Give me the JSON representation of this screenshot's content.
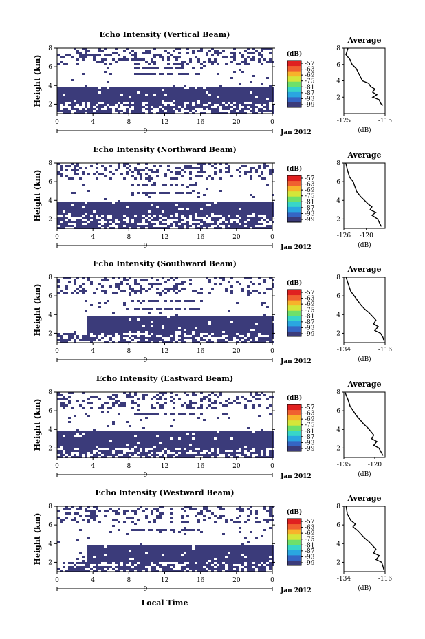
{
  "figure": {
    "x_axis_label": "Local Time",
    "date_label": "Jan 2012",
    "day_label": "9",
    "colorbar_unit": "(dB)",
    "average_title": "Average",
    "average_xlabel": "(dB)",
    "colors": {
      "echo": "#3b3b7a",
      "background": "#ffffff",
      "frame": "#000000"
    }
  },
  "chart_data": [
    {
      "type": "heatmap",
      "title": "Echo Intensity (Vertical Beam)",
      "ylabel": "Height (km)",
      "xlim": [
        0,
        24
      ],
      "ylim": [
        1,
        8
      ],
      "xticks": [
        "0",
        "4",
        "8",
        "12",
        "16",
        "20",
        "0"
      ],
      "yticks": [
        "2",
        "4",
        "6",
        "8"
      ],
      "colorbar": {
        "ticks": [
          "-57",
          "-63",
          "-69",
          "-75",
          "-81",
          "-87",
          "-93",
          "-99"
        ],
        "range": [
          -99,
          -57
        ]
      },
      "echo_layer": {
        "bottom_km": 2.3,
        "top_km": 4.0,
        "start_hour": 0
      },
      "cloud_fragments_km": [
        [
          5.3,
          5.5
        ],
        [
          6.0,
          6.2
        ]
      ],
      "average_profile": {
        "xlim": [
          -125,
          -115
        ],
        "xticks": [
          "-125",
          "-115"
        ],
        "ylim": [
          0,
          8
        ],
        "yticks": [
          "2",
          "4",
          "6",
          "8"
        ],
        "points": [
          [
            -124,
            8
          ],
          [
            -124.5,
            7.2
          ],
          [
            -123.5,
            6.6
          ],
          [
            -123,
            6.0
          ],
          [
            -122,
            5.5
          ],
          [
            -121.5,
            5.0
          ],
          [
            -121,
            4.5
          ],
          [
            -120.5,
            4.0
          ],
          [
            -119,
            3.7
          ],
          [
            -118.5,
            3.3
          ],
          [
            -117.5,
            3.0
          ],
          [
            -118,
            2.6
          ],
          [
            -117,
            2.3
          ],
          [
            -118,
            2.0
          ],
          [
            -116.5,
            1.7
          ],
          [
            -116,
            1.2
          ],
          [
            -115.5,
            1.0
          ]
        ]
      }
    },
    {
      "type": "heatmap",
      "title": "Echo Intensity (Northward Beam)",
      "ylabel": "Height (km)",
      "xlim": [
        0,
        24
      ],
      "ylim": [
        1,
        8
      ],
      "xticks": [
        "0",
        "4",
        "8",
        "12",
        "16",
        "20",
        "0"
      ],
      "yticks": [
        "2",
        "4",
        "6",
        "8"
      ],
      "colorbar": {
        "ticks": [
          "-57",
          "-63",
          "-69",
          "-75",
          "-81",
          "-87",
          "-93",
          "-99"
        ],
        "range": [
          -99,
          -57
        ]
      },
      "echo_layer": {
        "bottom_km": 2.6,
        "top_km": 4.0,
        "start_hour": 0
      },
      "cloud_fragments_km": [
        [
          4.8,
          5.0
        ],
        [
          5.6,
          5.8
        ]
      ],
      "average_profile": {
        "xlim": [
          -126,
          -115
        ],
        "xticks": [
          "-126",
          "-120"
        ],
        "ylim": [
          1,
          8
        ],
        "yticks": [
          "2",
          "4",
          "6",
          "8"
        ],
        "points": [
          [
            -125.5,
            8
          ],
          [
            -125,
            7.2
          ],
          [
            -124.5,
            6.5
          ],
          [
            -123.5,
            6.0
          ],
          [
            -123,
            5.4
          ],
          [
            -122.5,
            4.9
          ],
          [
            -121.5,
            4.4
          ],
          [
            -120.5,
            4.0
          ],
          [
            -119.5,
            3.6
          ],
          [
            -118.5,
            3.3
          ],
          [
            -119,
            3.0
          ],
          [
            -117.5,
            2.7
          ],
          [
            -118.5,
            2.4
          ],
          [
            -117,
            2.0
          ],
          [
            -116.5,
            1.6
          ],
          [
            -116,
            1.2
          ]
        ]
      }
    },
    {
      "type": "heatmap",
      "title": "Echo Intensity (Southward Beam)",
      "ylabel": "Height (km)",
      "xlim": [
        0,
        24
      ],
      "ylim": [
        1,
        8
      ],
      "xticks": [
        "0",
        "4",
        "8",
        "12",
        "16",
        "20",
        "0"
      ],
      "yticks": [
        "2",
        "4",
        "6",
        "8"
      ],
      "colorbar": {
        "ticks": [
          "-57",
          "-63",
          "-69",
          "-75",
          "-81",
          "-87",
          "-93",
          "-99"
        ],
        "range": [
          -99,
          -57
        ]
      },
      "echo_layer": {
        "bottom_km": 2.2,
        "top_km": 4.0,
        "start_hour": 3.2
      },
      "cloud_fragments_km": [
        [
          4.6,
          4.8
        ],
        [
          5.5,
          5.7
        ]
      ],
      "average_profile": {
        "xlim": [
          -134,
          -116
        ],
        "xticks": [
          "-134",
          "-116"
        ],
        "ylim": [
          1,
          8
        ],
        "yticks": [
          "2",
          "4",
          "6",
          "8"
        ],
        "points": [
          [
            -133,
            8
          ],
          [
            -132,
            7.2
          ],
          [
            -131,
            6.5
          ],
          [
            -129.5,
            6.0
          ],
          [
            -128,
            5.5
          ],
          [
            -126.5,
            5.0
          ],
          [
            -125,
            4.6
          ],
          [
            -123,
            4.2
          ],
          [
            -121.5,
            3.8
          ],
          [
            -120,
            3.4
          ],
          [
            -121,
            3.0
          ],
          [
            -119,
            2.7
          ],
          [
            -120.5,
            2.3
          ],
          [
            -118,
            2.0
          ],
          [
            -117,
            1.6
          ],
          [
            -116.5,
            1.2
          ]
        ]
      }
    },
    {
      "type": "heatmap",
      "title": "Echo Intensity (Eastward Beam)",
      "ylabel": "Height (km)",
      "xlim": [
        0,
        24
      ],
      "ylim": [
        1,
        8
      ],
      "xticks": [
        "0",
        "4",
        "8",
        "12",
        "16",
        "20",
        "0"
      ],
      "yticks": [
        "2",
        "4",
        "6",
        "8"
      ],
      "colorbar": {
        "ticks": [
          "-57",
          "-63",
          "-69",
          "-75",
          "-81",
          "-87",
          "-93",
          "-99"
        ],
        "range": [
          -99,
          -57
        ]
      },
      "echo_layer": {
        "bottom_km": 2.2,
        "top_km": 4.0,
        "start_hour": 0
      },
      "cloud_fragments_km": [
        [
          4.7,
          4.9
        ],
        [
          5.6,
          5.8
        ]
      ],
      "average_profile": {
        "xlim": [
          -135,
          -115
        ],
        "xticks": [
          "-135",
          "-120"
        ],
        "ylim": [
          1,
          8
        ],
        "yticks": [
          "2",
          "4",
          "6",
          "8"
        ],
        "points": [
          [
            -134.5,
            8
          ],
          [
            -133,
            7.2
          ],
          [
            -132,
            6.5
          ],
          [
            -130.5,
            6.0
          ],
          [
            -129,
            5.5
          ],
          [
            -127,
            5.0
          ],
          [
            -125.5,
            4.6
          ],
          [
            -123.5,
            4.2
          ],
          [
            -122,
            3.8
          ],
          [
            -120.5,
            3.4
          ],
          [
            -121.5,
            3.0
          ],
          [
            -119,
            2.7
          ],
          [
            -120.5,
            2.3
          ],
          [
            -118,
            2.0
          ],
          [
            -117,
            1.6
          ],
          [
            -116,
            1.2
          ]
        ]
      }
    },
    {
      "type": "heatmap",
      "title": "Echo Intensity (Westward Beam)",
      "ylabel": "Height (km)",
      "xlim": [
        0,
        24
      ],
      "ylim": [
        1,
        8
      ],
      "xticks": [
        "0",
        "4",
        "8",
        "12",
        "16",
        "20",
        "0"
      ],
      "yticks": [
        "2",
        "4",
        "6",
        "8"
      ],
      "colorbar": {
        "ticks": [
          "-57",
          "-63",
          "-69",
          "-75",
          "-81",
          "-87",
          "-93",
          "-99"
        ],
        "range": [
          -99,
          -57
        ]
      },
      "echo_layer": {
        "bottom_km": 2.2,
        "top_km": 4.0,
        "start_hour": 3.2
      },
      "cloud_fragments_km": [
        [
          4.7,
          4.9
        ],
        [
          5.5,
          5.7
        ]
      ],
      "average_profile": {
        "xlim": [
          -134,
          -116
        ],
        "xticks": [
          "-134",
          "-116"
        ],
        "ylim": [
          1,
          8
        ],
        "yticks": [
          "2",
          "4",
          "6",
          "8"
        ],
        "points": [
          [
            -133,
            8
          ],
          [
            -132.5,
            7.2
          ],
          [
            -131,
            6.5
          ],
          [
            -129,
            6.1
          ],
          [
            -130,
            5.8
          ],
          [
            -128,
            5.4
          ],
          [
            -126.5,
            5.0
          ],
          [
            -125,
            4.6
          ],
          [
            -123,
            4.2
          ],
          [
            -121.5,
            3.8
          ],
          [
            -120,
            3.4
          ],
          [
            -121,
            3.0
          ],
          [
            -118.5,
            2.7
          ],
          [
            -120,
            2.3
          ],
          [
            -117.5,
            2.0
          ],
          [
            -117,
            1.6
          ],
          [
            -116.5,
            1.2
          ]
        ]
      }
    }
  ]
}
